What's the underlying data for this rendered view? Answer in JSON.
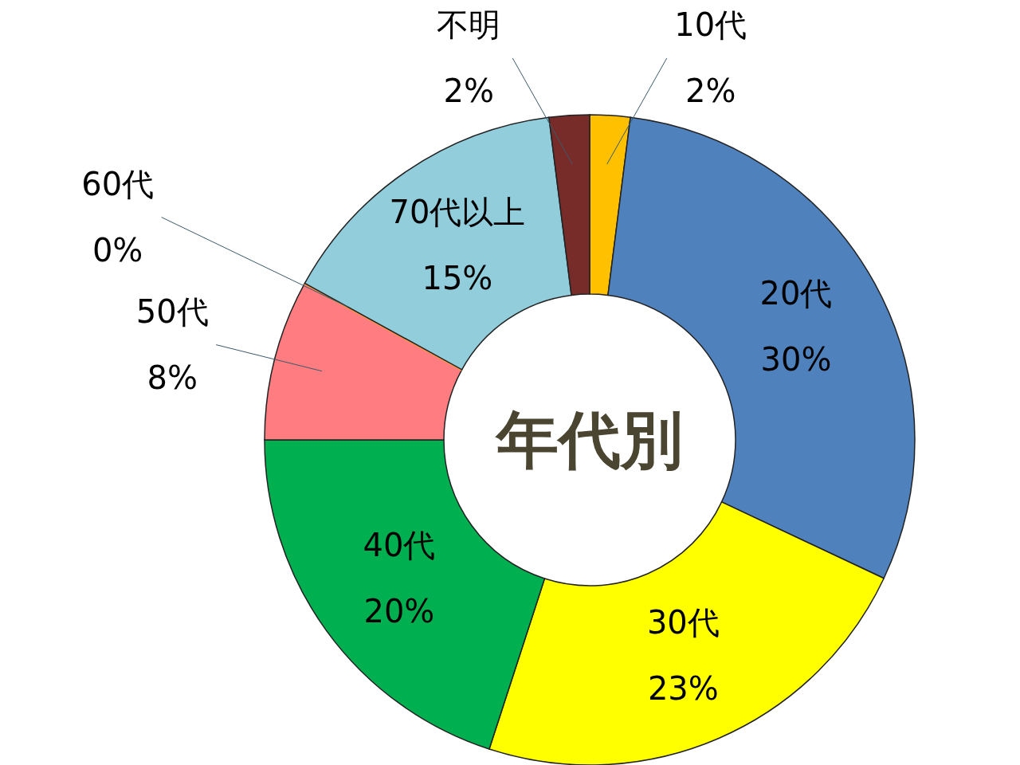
{
  "chart_data": {
    "type": "donut",
    "title": "年代別",
    "categories": [
      "10代",
      "20代",
      "30代",
      "40代",
      "50代",
      "60代",
      "70代以上",
      "不明"
    ],
    "values": [
      2,
      30,
      23,
      20,
      8,
      0,
      15,
      2
    ],
    "colors": [
      "#ffc000",
      "#4f81bd",
      "#ffff00",
      "#00b050",
      "#ff7c80",
      "#f79646",
      "#92cddc",
      "#772c2a"
    ],
    "value_labels": [
      "2%",
      "30%",
      "23%",
      "20%",
      "8%",
      "0%",
      "15%",
      "2%"
    ]
  }
}
